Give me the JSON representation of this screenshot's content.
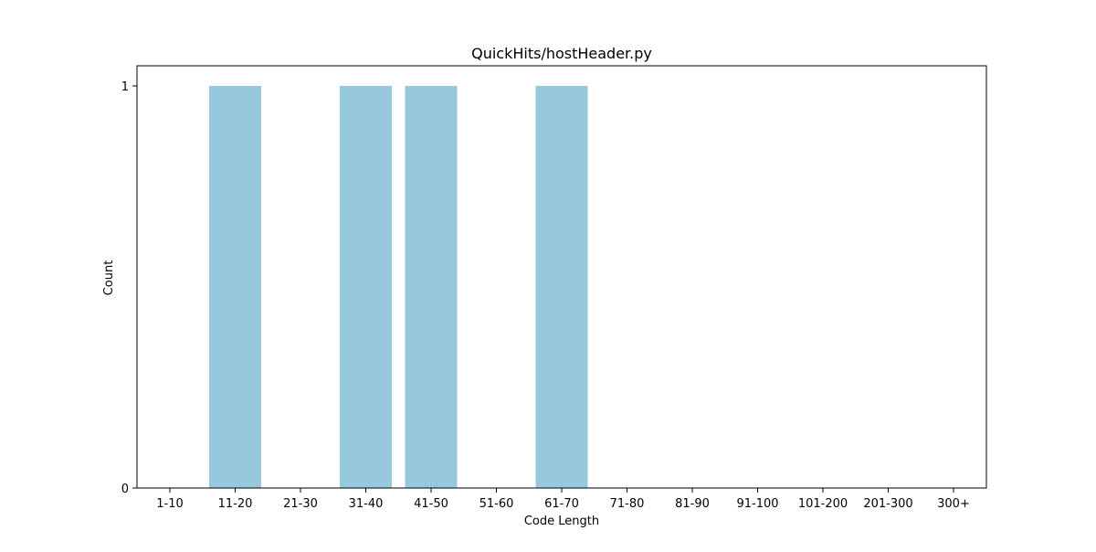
{
  "chart_data": {
    "type": "bar",
    "title": "QuickHits/hostHeader.py",
    "xlabel": "Code Length",
    "ylabel": "Count",
    "categories": [
      "1-10",
      "11-20",
      "21-30",
      "31-40",
      "41-50",
      "51-60",
      "61-70",
      "71-80",
      "81-90",
      "91-100",
      "101-200",
      "201-300",
      "300+"
    ],
    "values": [
      0,
      1,
      0,
      1,
      1,
      0,
      1,
      0,
      0,
      0,
      0,
      0,
      0
    ],
    "ylim": [
      0,
      1
    ],
    "yticks": [
      "0",
      "1"
    ],
    "grid": false,
    "bar_color": "#96c9dd"
  }
}
